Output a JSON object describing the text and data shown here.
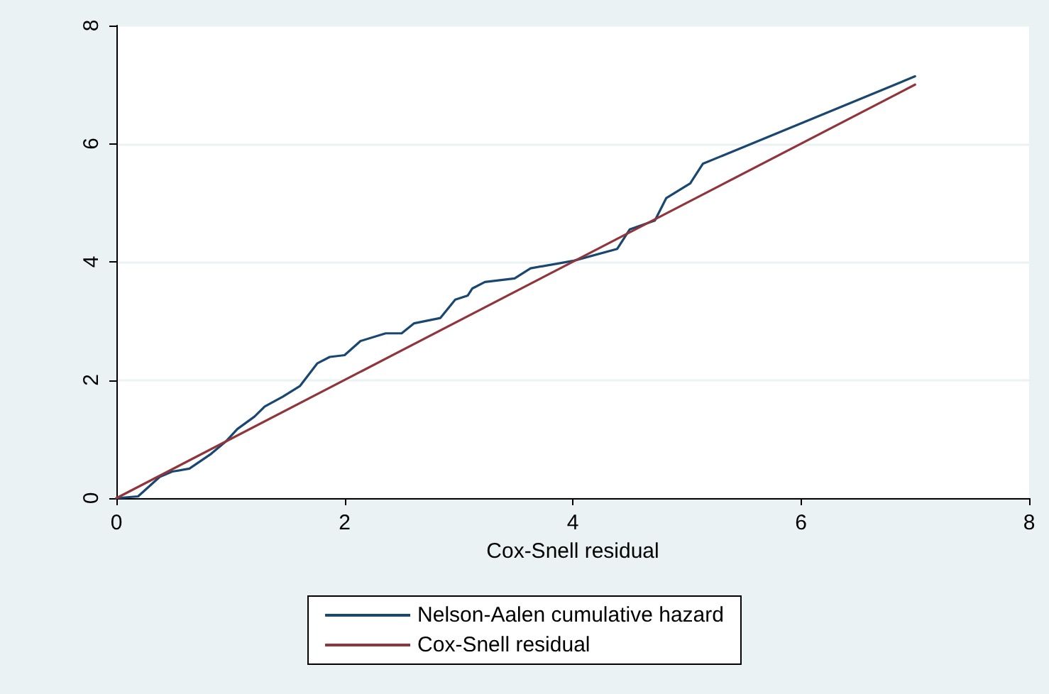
{
  "chart_data": {
    "type": "line",
    "xlabel": "Cox-Snell residual",
    "xlim": [
      0,
      8
    ],
    "xticks": [
      0,
      2,
      4,
      6,
      8
    ],
    "ylim": [
      0,
      8
    ],
    "yticks": [
      0,
      2,
      4,
      6,
      8
    ],
    "grid": "y",
    "legend": "bottom",
    "marker": "none",
    "line_style": "solid",
    "series": [
      {
        "name": "Nelson-Aalen cumulative hazard",
        "color": "#1a476f",
        "x": [
          0,
          0.19,
          0.38,
          0.49,
          0.64,
          0.83,
          0.96,
          1.06,
          1.21,
          1.3,
          1.46,
          1.61,
          1.76,
          1.87,
          2.0,
          2.14,
          2.36,
          2.5,
          2.61,
          2.84,
          2.97,
          3.08,
          3.12,
          3.23,
          3.49,
          3.63,
          4.01,
          4.39,
          4.5,
          4.72,
          4.82,
          5.03,
          5.14,
          7.0
        ],
        "values": [
          0,
          0.03,
          0.36,
          0.45,
          0.5,
          0.75,
          0.96,
          1.17,
          1.38,
          1.55,
          1.72,
          1.9,
          2.28,
          2.39,
          2.42,
          2.66,
          2.79,
          2.79,
          2.96,
          3.05,
          3.36,
          3.43,
          3.55,
          3.66,
          3.72,
          3.89,
          4.02,
          4.22,
          4.55,
          4.7,
          5.08,
          5.33,
          5.66,
          7.14
        ]
      },
      {
        "name": "Cox-Snell residual",
        "color": "#90353b",
        "x": [
          0,
          7
        ],
        "values": [
          0,
          7
        ]
      }
    ]
  }
}
